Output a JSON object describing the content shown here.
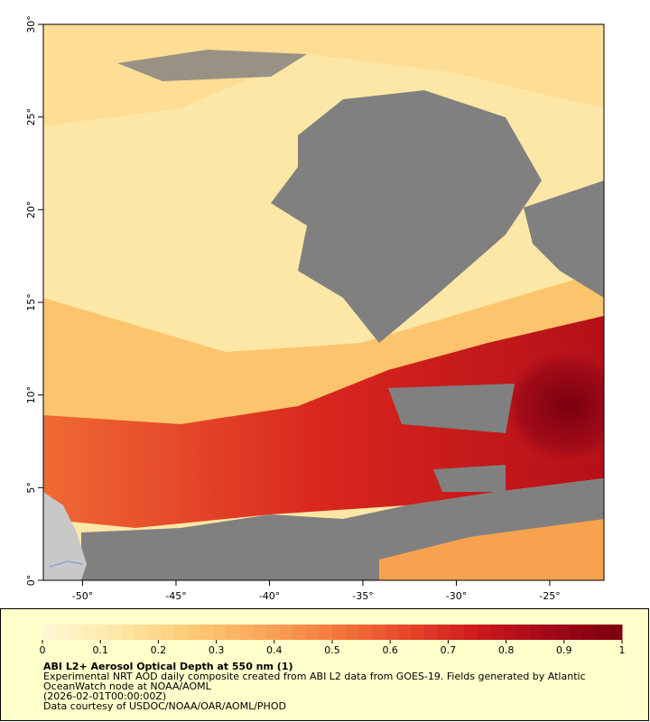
{
  "map": {
    "xlim": [
      -52.1,
      -22.1
    ],
    "ylim": [
      0,
      30
    ],
    "xticks": [
      {
        "value": -50,
        "label": "-50°"
      },
      {
        "value": -45,
        "label": "-45°"
      },
      {
        "value": -40,
        "label": "-40°"
      },
      {
        "value": -35,
        "label": "-35°"
      },
      {
        "value": -30,
        "label": "-30°"
      },
      {
        "value": -25,
        "label": "-25°"
      }
    ],
    "yticks": [
      {
        "value": 0,
        "label": "0°"
      },
      {
        "value": 5,
        "label": "5°"
      },
      {
        "value": 10,
        "label": "10°"
      },
      {
        "value": 15,
        "label": "15°"
      },
      {
        "value": 20,
        "label": "20°"
      },
      {
        "value": 25,
        "label": "25°"
      },
      {
        "value": 30,
        "label": "30°"
      }
    ]
  },
  "colorbar": {
    "lim": [
      0,
      1
    ],
    "ticks": [
      0,
      0.1,
      0.2,
      0.3,
      0.4,
      0.5,
      0.6,
      0.7,
      0.8,
      0.9,
      1
    ],
    "colors": [
      "#fff8d4",
      "#fee8a8",
      "#fdcc78",
      "#fba85a",
      "#f57b3e",
      "#e8482a",
      "#cc1a1c",
      "#a10818",
      "#7a0010"
    ]
  },
  "caption": {
    "title": "ABI L2+ Aerosol Optical Depth at 550 nm (1)",
    "lines": [
      "Experimental NRT AOD daily composite created from ABI L2 data from GOES-19. Fields generated by Atlantic",
      "OceanWatch node at NOAA/AOML",
      "(2026-02-01T00:00:00Z)",
      "Data courtesy of USDOC/NOAA/OAR/AOML/PHOD"
    ]
  }
}
